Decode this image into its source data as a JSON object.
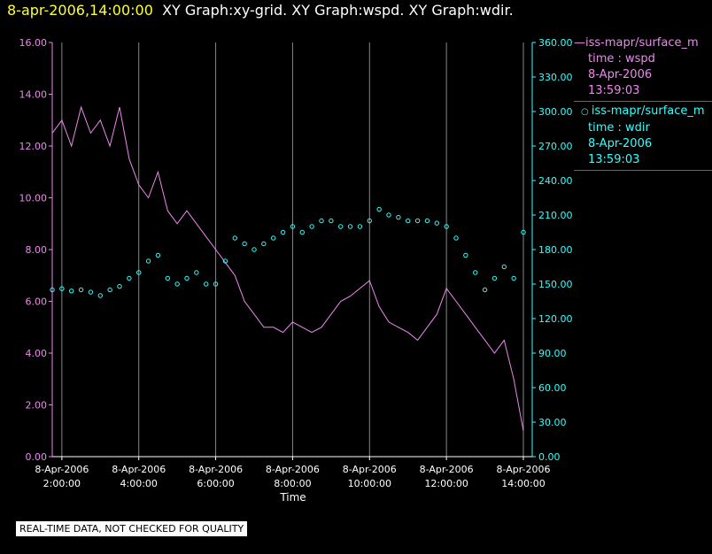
{
  "header": {
    "timestamp": "8-apr-2006,14:00:00",
    "graphs": "XY Graph:xy-grid.  XY Graph:wspd.  XY Graph:wdir."
  },
  "legend": [
    {
      "marker": "line",
      "name": "iss-mapr/surface_m",
      "field": "time : wspd",
      "date": "8-Apr-2006",
      "time": "13:59:03",
      "color": "#ee88ee"
    },
    {
      "marker": "circle",
      "name": "iss-mapr/surface_m",
      "field": "time : wdir",
      "date": "8-Apr-2006",
      "time": "13:59:03",
      "color": "#33ffff"
    }
  ],
  "footer": {
    "qc_note": "REAL-TIME DATA, NOT CHECKED FOR QUALITY"
  },
  "colors": {
    "background": "#000000",
    "wspd": "#ee88ee",
    "wdir": "#33ffff",
    "grid": "#888888",
    "axis_text": "#ffffff"
  },
  "chart_data": {
    "type": "line",
    "xlabel": "Time",
    "xlim": [
      1.75,
      14.0
    ],
    "x_ticks": [
      {
        "date": "8-Apr-2006",
        "time": "2:00:00",
        "hour": 2
      },
      {
        "date": "8-Apr-2006",
        "time": "4:00:00",
        "hour": 4
      },
      {
        "date": "8-Apr-2006",
        "time": "6:00:00",
        "hour": 6
      },
      {
        "date": "8-Apr-2006",
        "time": "8:00:00",
        "hour": 8
      },
      {
        "date": "8-Apr-2006",
        "time": "10:00:00",
        "hour": 10
      },
      {
        "date": "8-Apr-2006",
        "time": "12:00:00",
        "hour": 12
      },
      {
        "date": "8-Apr-2006",
        "time": "14:00:00",
        "hour": 14
      }
    ],
    "y_left": {
      "lim": [
        0,
        16
      ],
      "ticks": [
        "0.00",
        "2.00",
        "4.00",
        "6.00",
        "8.00",
        "10.00",
        "12.00",
        "14.00",
        "16.00"
      ],
      "color": "#ee88ee"
    },
    "y_right": {
      "lim": [
        0,
        360
      ],
      "ticks": [
        "0.00",
        "30.00",
        "60.00",
        "90.00",
        "120.00",
        "150.00",
        "180.00",
        "210.00",
        "240.00",
        "270.00",
        "300.00",
        "330.00",
        "360.00"
      ],
      "color": "#33ffff"
    },
    "grid": "vertical",
    "series": [
      {
        "name": "iss-mapr/surface_m wspd",
        "axis": "left",
        "style": "line",
        "x": [
          1.75,
          2.0,
          2.25,
          2.5,
          2.75,
          3.0,
          3.25,
          3.5,
          3.75,
          4.0,
          4.25,
          4.5,
          4.75,
          5.0,
          5.25,
          5.5,
          5.75,
          6.0,
          6.25,
          6.5,
          6.75,
          7.0,
          7.25,
          7.5,
          7.75,
          8.0,
          8.25,
          8.5,
          8.75,
          9.0,
          9.25,
          9.5,
          9.75,
          10.0,
          10.25,
          10.5,
          10.75,
          11.0,
          11.25,
          11.5,
          11.75,
          12.0,
          12.25,
          12.5,
          12.75,
          13.0,
          13.25,
          13.5,
          13.75,
          14.0
        ],
        "y": [
          12.5,
          13.0,
          12.0,
          13.5,
          12.5,
          13.0,
          12.0,
          13.5,
          11.5,
          10.5,
          10.0,
          11.0,
          9.5,
          9.0,
          9.5,
          9.0,
          8.5,
          8.0,
          7.5,
          7.0,
          6.0,
          5.5,
          5.0,
          5.0,
          4.8,
          5.2,
          5.0,
          4.8,
          5.0,
          5.5,
          6.0,
          6.2,
          6.5,
          6.8,
          5.8,
          5.2,
          5.0,
          4.8,
          4.5,
          5.0,
          5.5,
          6.5,
          6.0,
          5.5,
          5.0,
          4.5,
          4.0,
          4.5,
          3.0,
          1.0
        ]
      },
      {
        "name": "iss-mapr/surface_m wdir",
        "axis": "right",
        "style": "circle",
        "x": [
          1.75,
          2.0,
          2.25,
          2.5,
          2.75,
          3.0,
          3.25,
          3.5,
          3.75,
          4.0,
          4.25,
          4.5,
          4.75,
          5.0,
          5.25,
          5.5,
          5.75,
          6.0,
          6.25,
          6.5,
          6.75,
          7.0,
          7.25,
          7.5,
          7.75,
          8.0,
          8.25,
          8.5,
          8.75,
          9.0,
          9.25,
          9.5,
          9.75,
          10.0,
          10.25,
          10.5,
          10.75,
          11.0,
          11.25,
          11.5,
          11.75,
          12.0,
          12.25,
          12.5,
          12.75,
          13.0,
          13.25,
          13.5,
          13.75,
          14.0
        ],
        "y": [
          145,
          146,
          144,
          145,
          143,
          140,
          145,
          148,
          155,
          160,
          170,
          175,
          155,
          150,
          155,
          160,
          150,
          150,
          170,
          190,
          185,
          180,
          185,
          190,
          195,
          200,
          195,
          200,
          205,
          205,
          200,
          200,
          200,
          205,
          215,
          210,
          208,
          205,
          205,
          205,
          203,
          200,
          190,
          175,
          160,
          145,
          155,
          165,
          155,
          195
        ]
      }
    ]
  }
}
